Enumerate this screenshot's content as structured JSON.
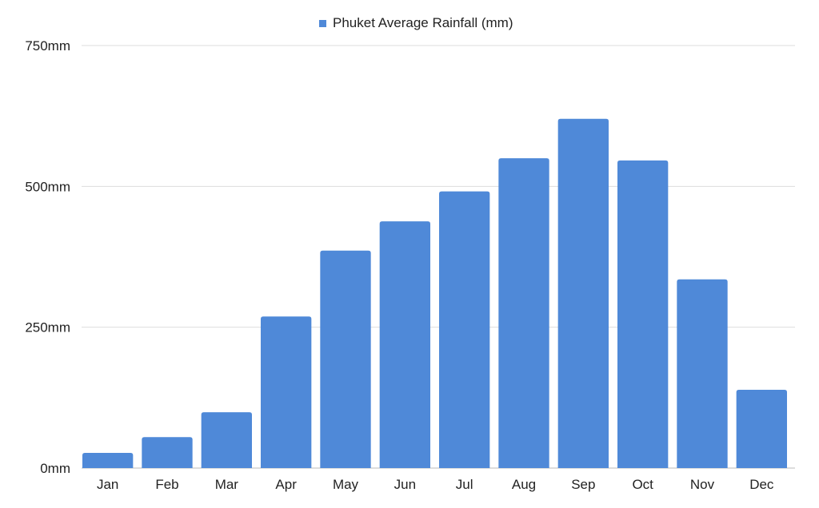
{
  "chart_data": {
    "type": "bar",
    "categories": [
      "Jan",
      "Feb",
      "Mar",
      "Apr",
      "May",
      "Jun",
      "Jul",
      "Aug",
      "Sep",
      "Oct",
      "Nov",
      "Dec"
    ],
    "series": [
      {
        "name": "Phuket Average Rainfall (mm)",
        "values": [
          27,
          55,
          99,
          269,
          386,
          438,
          491,
          550,
          620,
          546,
          335,
          139
        ],
        "color": "#4f89d8"
      }
    ],
    "ylim": [
      0,
      750
    ],
    "yticks": [
      0,
      250,
      500,
      750
    ],
    "ytick_labels": [
      "0mm",
      "250mm",
      "500mm",
      "750mm"
    ],
    "grid": true,
    "legend": "top-center",
    "xlabel": "",
    "ylabel": ""
  }
}
